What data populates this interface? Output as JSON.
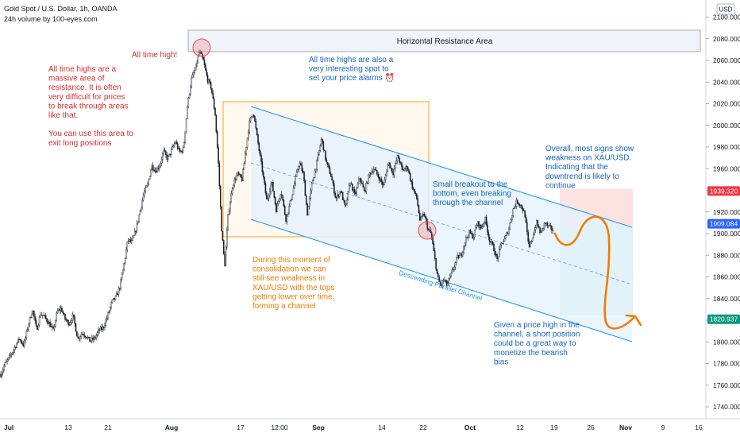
{
  "header": {
    "symbol_title": "Gold Spot / U.S. Dollar, 1h, OANDA",
    "volume_note": "24h volume by 100-eyes.com"
  },
  "currency_button": {
    "label": "USD"
  },
  "colors": {
    "candle": "#131722",
    "channel_line": "#2196f3",
    "channel_fill": "#e3f2fd",
    "channel_midline": "#5b9cf6",
    "consolidation_border": "#ff9800",
    "consolidation_fill": "#fff8ee",
    "resistance_fill": "#f0f3fa",
    "resistance_border": "#9598a1",
    "highlight_circle": "#ef5350",
    "projection_arrow": "#ef7d00",
    "stop_zone": "#fde2e2",
    "target_zone": "#e0f2e9",
    "red_text": "#d32f2f",
    "blue_text": "#1565c0",
    "orange_text": "#ef7d00",
    "price_tag_red": "#f23645",
    "price_tag_blue": "#2962ff",
    "price_tag_green": "#089981"
  },
  "chart_data": {
    "type": "candlestick",
    "title": "Gold Spot / U.S. Dollar, 1h, OANDA",
    "y_axis": {
      "unit": "USD",
      "range": [
        1730,
        2110
      ],
      "ticks": [
        1740,
        1760,
        1780,
        1800,
        1820,
        1840,
        1860,
        1880,
        1900,
        1920,
        1940,
        1960,
        1980,
        2000,
        2020,
        2040,
        2060,
        2080,
        2100
      ],
      "tick_labels": [
        "1740.000",
        "1760.000",
        "1780.000",
        "1800.000",
        "1820.000",
        "1840.000",
        "1860.000",
        "1880.000",
        "1900.000",
        "1920.000",
        "1940.000",
        "1960.000",
        "1980.000",
        "2000.000",
        "2020.000",
        "2040.000",
        "2060.000",
        "2080.000",
        "2100.000"
      ]
    },
    "x_axis": {
      "labels": [
        "Jul",
        "13",
        "21",
        "Aug",
        "17",
        "12:00",
        "Sep",
        "14",
        "22",
        "Oct",
        "12",
        "19",
        "26",
        "Nov",
        "9",
        "16"
      ],
      "bold_labels": [
        "Jul",
        "Aug",
        "Sep",
        "Oct",
        "Nov"
      ]
    },
    "price_path": [
      {
        "t": 0,
        "p": 1770
      },
      {
        "t": 5,
        "p": 1779
      },
      {
        "t": 11,
        "p": 1786
      },
      {
        "t": 17,
        "p": 1794
      },
      {
        "t": 23,
        "p": 1803
      },
      {
        "t": 29,
        "p": 1797
      },
      {
        "t": 35,
        "p": 1817
      },
      {
        "t": 40,
        "p": 1830
      },
      {
        "t": 45,
        "p": 1811
      },
      {
        "t": 50,
        "p": 1826
      },
      {
        "t": 55,
        "p": 1823
      },
      {
        "t": 61,
        "p": 1817
      },
      {
        "t": 66,
        "p": 1810
      },
      {
        "t": 71,
        "p": 1828
      },
      {
        "t": 76,
        "p": 1831
      },
      {
        "t": 81,
        "p": 1821
      },
      {
        "t": 86,
        "p": 1817
      },
      {
        "t": 91,
        "p": 1824
      },
      {
        "t": 97,
        "p": 1803
      },
      {
        "t": 102,
        "p": 1808
      },
      {
        "t": 107,
        "p": 1806
      },
      {
        "t": 112,
        "p": 1801
      },
      {
        "t": 118,
        "p": 1803
      },
      {
        "t": 124,
        "p": 1811
      },
      {
        "t": 129,
        "p": 1813
      },
      {
        "t": 134,
        "p": 1823
      },
      {
        "t": 140,
        "p": 1837
      },
      {
        "t": 145,
        "p": 1841
      },
      {
        "t": 150,
        "p": 1851
      },
      {
        "t": 155,
        "p": 1871
      },
      {
        "t": 160,
        "p": 1894
      },
      {
        "t": 165,
        "p": 1892
      },
      {
        "t": 170,
        "p": 1903
      },
      {
        "t": 175,
        "p": 1920
      },
      {
        "t": 180,
        "p": 1937
      },
      {
        "t": 185,
        "p": 1945
      },
      {
        "t": 190,
        "p": 1963
      },
      {
        "t": 195,
        "p": 1958
      },
      {
        "t": 200,
        "p": 1963
      },
      {
        "t": 205,
        "p": 1976
      },
      {
        "t": 210,
        "p": 1969
      },
      {
        "t": 215,
        "p": 1977
      },
      {
        "t": 220,
        "p": 1985
      },
      {
        "t": 225,
        "p": 1975
      },
      {
        "t": 230,
        "p": 1978
      },
      {
        "t": 235,
        "p": 2018
      },
      {
        "t": 240,
        "p": 2042
      },
      {
        "t": 245,
        "p": 2052
      },
      {
        "t": 250,
        "p": 2068
      },
      {
        "t": 255,
        "p": 2060
      },
      {
        "t": 260,
        "p": 2043
      },
      {
        "t": 265,
        "p": 2035
      },
      {
        "t": 270,
        "p": 2010
      },
      {
        "t": 274,
        "p": 1965
      },
      {
        "t": 278,
        "p": 1905
      },
      {
        "t": 282,
        "p": 1870
      },
      {
        "t": 286,
        "p": 1915
      },
      {
        "t": 292,
        "p": 1945
      },
      {
        "t": 298,
        "p": 1955
      },
      {
        "t": 304,
        "p": 1950
      },
      {
        "t": 308,
        "p": 1975
      },
      {
        "t": 313,
        "p": 2002
      },
      {
        "t": 318,
        "p": 2013
      },
      {
        "t": 323,
        "p": 1988
      },
      {
        "t": 329,
        "p": 1960
      },
      {
        "t": 335,
        "p": 1930
      },
      {
        "t": 341,
        "p": 1948
      },
      {
        "t": 347,
        "p": 1922
      },
      {
        "t": 353,
        "p": 1940
      },
      {
        "t": 359,
        "p": 1913
      },
      {
        "t": 365,
        "p": 1930
      },
      {
        "t": 371,
        "p": 1950
      },
      {
        "t": 376,
        "p": 1966
      },
      {
        "t": 381,
        "p": 1955
      },
      {
        "t": 386,
        "p": 1918
      },
      {
        "t": 392,
        "p": 1947
      },
      {
        "t": 398,
        "p": 1965
      },
      {
        "t": 404,
        "p": 1988
      },
      {
        "t": 410,
        "p": 1966
      },
      {
        "t": 416,
        "p": 1953
      },
      {
        "t": 422,
        "p": 1932
      },
      {
        "t": 428,
        "p": 1940
      },
      {
        "t": 434,
        "p": 1923
      },
      {
        "t": 440,
        "p": 1948
      },
      {
        "t": 446,
        "p": 1935
      },
      {
        "t": 452,
        "p": 1952
      },
      {
        "t": 458,
        "p": 1938
      },
      {
        "t": 464,
        "p": 1955
      },
      {
        "t": 470,
        "p": 1960
      },
      {
        "t": 476,
        "p": 1952
      },
      {
        "t": 482,
        "p": 1944
      },
      {
        "t": 488,
        "p": 1966
      },
      {
        "t": 494,
        "p": 1956
      },
      {
        "t": 500,
        "p": 1972
      },
      {
        "t": 506,
        "p": 1958
      },
      {
        "t": 512,
        "p": 1962
      },
      {
        "t": 518,
        "p": 1944
      },
      {
        "t": 524,
        "p": 1932
      },
      {
        "t": 528,
        "p": 1912
      },
      {
        "t": 533,
        "p": 1918
      },
      {
        "t": 538,
        "p": 1904
      },
      {
        "t": 542,
        "p": 1900
      },
      {
        "t": 546,
        "p": 1880
      },
      {
        "t": 550,
        "p": 1860
      },
      {
        "t": 554,
        "p": 1851
      },
      {
        "t": 558,
        "p": 1858
      },
      {
        "t": 562,
        "p": 1852
      },
      {
        "t": 566,
        "p": 1860
      },
      {
        "t": 570,
        "p": 1868
      },
      {
        "t": 575,
        "p": 1878
      },
      {
        "t": 580,
        "p": 1880
      },
      {
        "t": 585,
        "p": 1894
      },
      {
        "t": 590,
        "p": 1901
      },
      {
        "t": 595,
        "p": 1897
      },
      {
        "t": 600,
        "p": 1910
      },
      {
        "t": 605,
        "p": 1905
      },
      {
        "t": 610,
        "p": 1914
      },
      {
        "t": 615,
        "p": 1895
      },
      {
        "t": 620,
        "p": 1888
      },
      {
        "t": 625,
        "p": 1876
      },
      {
        "t": 630,
        "p": 1890
      },
      {
        "t": 635,
        "p": 1895
      },
      {
        "t": 640,
        "p": 1905
      },
      {
        "t": 645,
        "p": 1922
      },
      {
        "t": 650,
        "p": 1930
      },
      {
        "t": 655,
        "p": 1926
      },
      {
        "t": 660,
        "p": 1918
      },
      {
        "t": 665,
        "p": 1886
      },
      {
        "t": 670,
        "p": 1898
      },
      {
        "t": 675,
        "p": 1910
      },
      {
        "t": 680,
        "p": 1900
      },
      {
        "t": 685,
        "p": 1910
      },
      {
        "t": 690,
        "p": 1906
      },
      {
        "t": 696,
        "p": 1903
      }
    ],
    "price_tags": [
      {
        "value": "1939.320",
        "price": 1939.32,
        "color_key": "price_tag_red"
      },
      {
        "value": "1909.084",
        "price": 1909.084,
        "color_key": "price_tag_blue"
      },
      {
        "value": "1820.937",
        "price": 1820.937,
        "color_key": "price_tag_green"
      }
    ],
    "drawings": {
      "resistance_box_label": "Horizontal Resistance Area",
      "channel_label": "Descending Parallel Channel"
    },
    "annotations": [
      {
        "id": "ath",
        "color_key": "red_text",
        "lines": [
          "All time high!"
        ]
      },
      {
        "id": "ath-resistance",
        "color_key": "red_text",
        "lines": [
          "All time highs are a",
          "massive area of",
          "resistance. It is often",
          "very difficult for prices",
          "to break through areas",
          "like that.",
          "",
          "You can use this area to",
          "exit long positions"
        ]
      },
      {
        "id": "price-alarms",
        "color_key": "blue_text",
        "lines": [
          "All time highs are also a",
          "very interesting spot to",
          "set your price alarms ⏰"
        ]
      },
      {
        "id": "breakout",
        "color_key": "blue_text",
        "lines": [
          "Small breakout to the",
          "bottom, even breaking",
          "through the channel"
        ]
      },
      {
        "id": "overall",
        "color_key": "blue_text",
        "lines": [
          "Overall, most signs show",
          "weakness on XAU/USD.",
          "Indicating that the",
          "downtrend is likely to",
          "continue"
        ]
      },
      {
        "id": "consolidation",
        "color_key": "orange_text",
        "lines": [
          "During this moment of",
          "consolidation we can",
          "still see weakness in",
          "XAU/USD with the tops",
          "getting lower over time,",
          "forming a channel"
        ]
      },
      {
        "id": "short-position",
        "color_key": "blue_text",
        "lines": [
          "Given a price high in the",
          "channel, a short position",
          "could be a great way to",
          "monetize the bearish",
          "bias"
        ]
      }
    ]
  }
}
